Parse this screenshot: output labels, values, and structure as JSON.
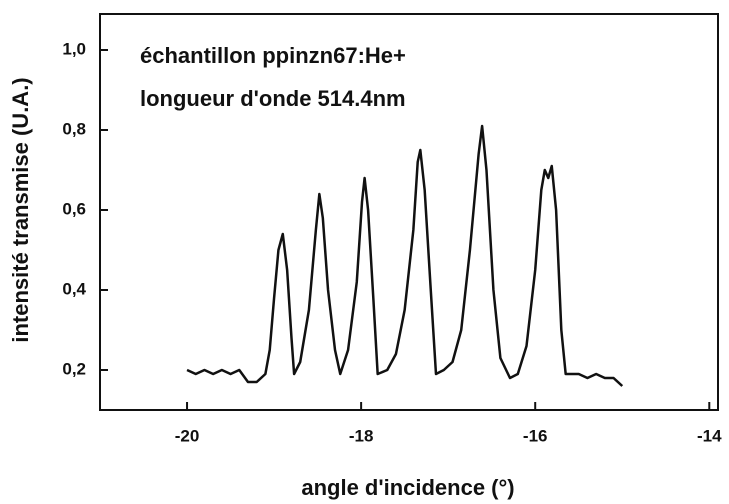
{
  "chart_data": {
    "type": "line",
    "annotations": [
      "échantillon ppinzn67:He+",
      "longueur d'onde 514.4nm"
    ],
    "xlabel": "angle d'incidence (°)",
    "ylabel": "intensité transmise (U.A.)",
    "xlim": [
      -21,
      -13.9
    ],
    "ylim": [
      0.1,
      1.09
    ],
    "xticks": [
      -20,
      -18,
      -16,
      -14
    ],
    "yticks": [
      {
        "value": 0.2,
        "label": "0,2"
      },
      {
        "value": 0.4,
        "label": "0,4"
      },
      {
        "value": 0.6,
        "label": "0,6"
      },
      {
        "value": 0.8,
        "label": "0,8"
      },
      {
        "value": 1.0,
        "label": "1,0"
      }
    ],
    "grid": false,
    "series": [
      {
        "color": "#111111",
        "x": [
          -20.0,
          -19.9,
          -19.8,
          -19.7,
          -19.6,
          -19.5,
          -19.4,
          -19.3,
          -19.2,
          -19.1,
          -19.05,
          -19.0,
          -18.95,
          -18.9,
          -18.85,
          -18.8,
          -18.77,
          -18.7,
          -18.6,
          -18.52,
          -18.48,
          -18.44,
          -18.38,
          -18.3,
          -18.24,
          -18.15,
          -18.05,
          -17.99,
          -17.96,
          -17.92,
          -17.86,
          -17.81,
          -17.7,
          -17.6,
          -17.5,
          -17.4,
          -17.35,
          -17.32,
          -17.27,
          -17.2,
          -17.14,
          -17.05,
          -16.95,
          -16.85,
          -16.75,
          -16.65,
          -16.61,
          -16.56,
          -16.48,
          -16.4,
          -16.29,
          -16.2,
          -16.1,
          -16.0,
          -15.93,
          -15.89,
          -15.85,
          -15.81,
          -15.76,
          -15.7,
          -15.65,
          -15.5,
          -15.4,
          -15.3,
          -15.2,
          -15.1,
          -15.0
        ],
        "values": [
          0.2,
          0.19,
          0.2,
          0.19,
          0.2,
          0.19,
          0.2,
          0.17,
          0.17,
          0.19,
          0.25,
          0.38,
          0.5,
          0.54,
          0.45,
          0.28,
          0.19,
          0.22,
          0.35,
          0.55,
          0.64,
          0.58,
          0.4,
          0.25,
          0.19,
          0.25,
          0.42,
          0.62,
          0.68,
          0.6,
          0.38,
          0.19,
          0.2,
          0.24,
          0.35,
          0.55,
          0.72,
          0.75,
          0.65,
          0.4,
          0.19,
          0.2,
          0.22,
          0.3,
          0.5,
          0.74,
          0.81,
          0.7,
          0.4,
          0.23,
          0.18,
          0.19,
          0.26,
          0.45,
          0.65,
          0.7,
          0.68,
          0.71,
          0.6,
          0.3,
          0.19,
          0.19,
          0.18,
          0.19,
          0.18,
          0.18,
          0.16
        ]
      }
    ]
  }
}
